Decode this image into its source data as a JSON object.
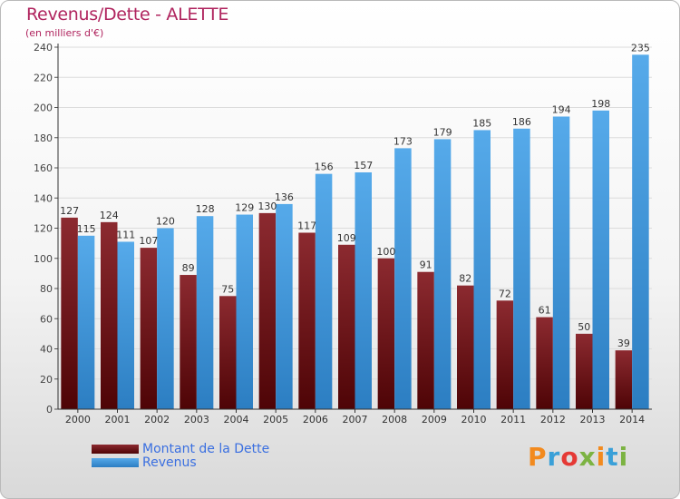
{
  "header": {
    "title": "Revenus/Dette - ALETTE",
    "subtitle": "(en milliers d'€)"
  },
  "colors": {
    "dette": "#6e1118",
    "revenus": "#3f98dc",
    "title": "#b0245e",
    "legend_text": "#3a6fe0"
  },
  "legend": {
    "items": [
      {
        "label": "Montant de la Dette",
        "color": "#6e1118"
      },
      {
        "label": "Revenus",
        "color": "#3f98dc"
      }
    ]
  },
  "logo": {
    "text": "Proxiti"
  },
  "chart_data": {
    "type": "bar",
    "title": "Revenus/Dette - ALETTE",
    "subtitle": "(en milliers d'€)",
    "categories": [
      "2000",
      "2001",
      "2002",
      "2003",
      "2004",
      "2005",
      "2006",
      "2007",
      "2008",
      "2009",
      "2010",
      "2011",
      "2012",
      "2013",
      "2014"
    ],
    "series": [
      {
        "name": "Montant de la Dette",
        "values": [
          127,
          124,
          107,
          89,
          75,
          130,
          117,
          109,
          100,
          91,
          82,
          72,
          61,
          50,
          39
        ]
      },
      {
        "name": "Revenus",
        "values": [
          115,
          111,
          120,
          128,
          129,
          136,
          156,
          157,
          173,
          179,
          185,
          186,
          194,
          198,
          235
        ]
      }
    ],
    "ylim": [
      0,
      240
    ],
    "yticks": [
      0,
      20,
      40,
      60,
      80,
      100,
      120,
      140,
      160,
      180,
      200,
      220,
      240
    ],
    "grid": true,
    "legend_position": "bottom-left"
  }
}
